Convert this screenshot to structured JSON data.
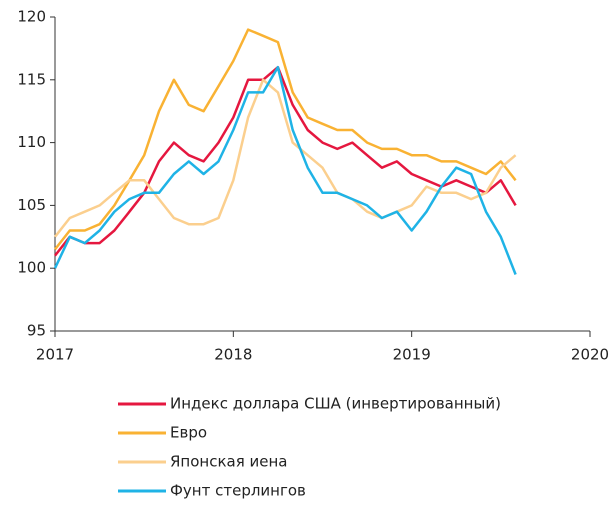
{
  "chart_data": {
    "type": "line",
    "x": [
      2017.0,
      2017.083,
      2017.167,
      2017.25,
      2017.333,
      2017.417,
      2017.5,
      2017.583,
      2017.667,
      2017.75,
      2017.833,
      2017.917,
      2018.0,
      2018.083,
      2018.167,
      2018.25,
      2018.333,
      2018.417,
      2018.5,
      2018.583,
      2018.667,
      2018.75,
      2018.833,
      2018.917,
      2019.0,
      2019.083,
      2019.167,
      2019.25,
      2019.333,
      2019.417,
      2019.5,
      2019.583
    ],
    "series": [
      {
        "name": "Индекс доллара США (инвертированный)",
        "color": "#e5173f",
        "values": [
          101,
          102.5,
          102,
          102,
          103,
          104.5,
          106,
          108.5,
          110,
          109,
          108.5,
          110,
          112,
          115,
          115,
          116,
          113,
          111,
          110,
          109.5,
          110,
          109,
          108,
          108.5,
          107.5,
          107,
          106.5,
          107,
          106.5,
          106,
          107,
          105
        ]
      },
      {
        "name": "Евро",
        "color": "#f9b233",
        "values": [
          101.5,
          103,
          103,
          103.5,
          105,
          107,
          109,
          112.5,
          115,
          113,
          112.5,
          114.5,
          116.5,
          119,
          118.5,
          118,
          114,
          112,
          111.5,
          111,
          111,
          110,
          109.5,
          109.5,
          109,
          109,
          108.5,
          108.5,
          108,
          107.5,
          108.5,
          107
        ]
      },
      {
        "name": "Японская иена",
        "color": "#fbcf8e",
        "values": [
          102.5,
          104,
          104.5,
          105,
          106,
          107,
          107,
          105.5,
          104,
          103.5,
          103.5,
          104,
          107,
          112,
          115,
          114,
          110,
          109,
          108,
          106,
          105.5,
          104.5,
          104,
          104.5,
          105,
          106.5,
          106,
          106,
          105.5,
          106,
          108,
          109
        ]
      },
      {
        "name": "Фунт стерлингов",
        "color": "#1fb3e6",
        "values": [
          100,
          102.5,
          102,
          103,
          104.5,
          105.5,
          106,
          106,
          107.5,
          108.5,
          107.5,
          108.5,
          111,
          114,
          114,
          116,
          111,
          108,
          106,
          106,
          105.5,
          105,
          104,
          104.5,
          103,
          104.5,
          106.5,
          108,
          107.5,
          104.5,
          102.5,
          99.5
        ]
      }
    ],
    "xlim": [
      2017,
      2020
    ],
    "xticks": [
      2017,
      2018,
      2019,
      2020
    ],
    "ylim": [
      95,
      120
    ],
    "yticks": [
      95,
      100,
      105,
      110,
      115,
      120
    ]
  }
}
